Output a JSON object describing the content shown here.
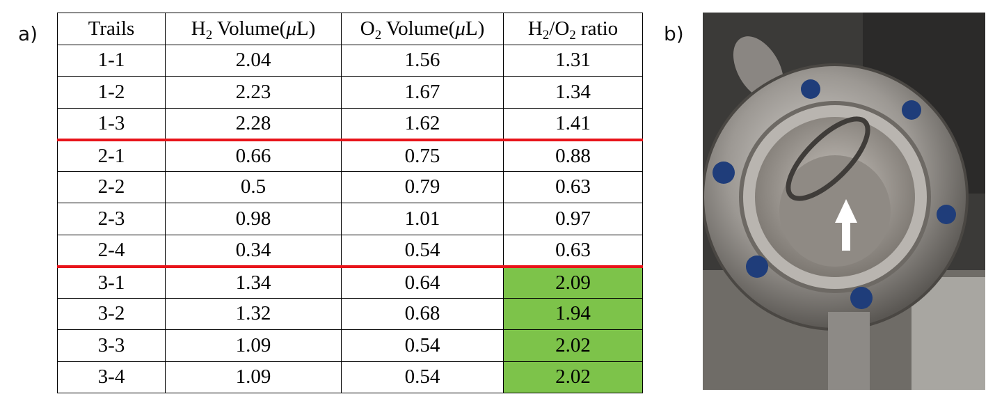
{
  "panels": {
    "a": "a)",
    "b": "b)"
  },
  "table": {
    "header": [
      [
        "Trails"
      ],
      [
        "H",
        {
          "sub": "2"
        },
        " Volume(",
        {
          "ital": "μ"
        },
        "L)"
      ],
      [
        "O",
        {
          "sub": "2"
        },
        " Volume(",
        {
          "ital": "μ"
        },
        "L)"
      ],
      [
        "H",
        {
          "sub": "2"
        },
        "/O",
        {
          "sub": "2"
        },
        " ratio"
      ]
    ],
    "rows": [
      [
        "1-1",
        2.04,
        1.56,
        1.31
      ],
      [
        "1-2",
        2.23,
        1.67,
        1.34
      ],
      [
        "1-3",
        2.28,
        1.62,
        1.41
      ],
      [
        "2-1",
        0.66,
        0.75,
        0.88
      ],
      [
        "2-2",
        0.5,
        0.79,
        0.63
      ],
      [
        "2-3",
        0.98,
        1.01,
        0.97
      ],
      [
        "2-4",
        0.34,
        0.54,
        0.63
      ],
      [
        "3-1",
        1.34,
        0.64,
        2.09
      ],
      [
        "3-2",
        1.32,
        0.68,
        1.94
      ],
      [
        "3-3",
        1.09,
        0.54,
        2.02
      ],
      [
        "3-4",
        1.09,
        0.54,
        2.02
      ]
    ]
  }
}
